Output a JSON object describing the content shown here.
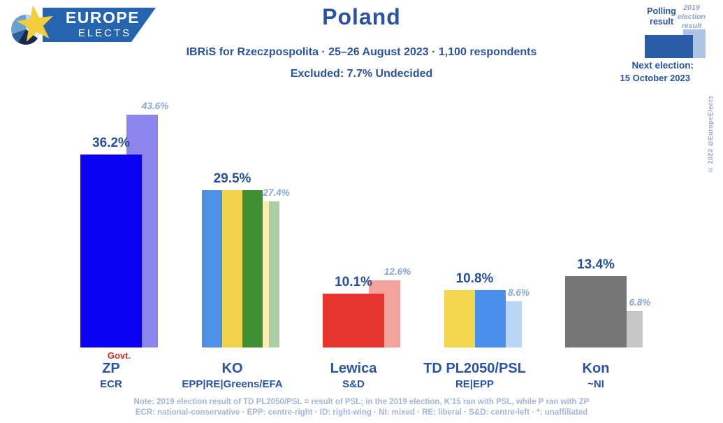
{
  "header": {
    "logo_line1": "EUROPE",
    "logo_line2": "ELECTS",
    "title": "Poland",
    "subtitle": "IBRiS for Rzeczpospolita · 25–26 August 2023 · 1,100 respondents",
    "excluded": "Excluded: 7.7% Undecided"
  },
  "legend": {
    "polling_label": "Polling result",
    "election_label": "2019 election result",
    "polling_color": "#2b5ca8",
    "election_color": "#aec3e6",
    "next_election_label": "Next election:",
    "next_election_date": "15 October 2023",
    "copyright": "© 2023 @EuropeElects"
  },
  "chart_data": {
    "type": "bar",
    "unit": "%",
    "ylim": [
      0,
      45
    ],
    "series": [
      "Polling result",
      "2019 election result"
    ],
    "parties": [
      {
        "name": "ZP",
        "group": "ECR",
        "value": 36.2,
        "value_2019": 43.6,
        "note": "Govt.",
        "colors": [
          "#0b02f2"
        ],
        "colors_2019": [
          "#8b85ec"
        ]
      },
      {
        "name": "KO",
        "group": "EPP|RE|Greens/EFA",
        "value": 29.5,
        "value_2019": 27.4,
        "note": "",
        "colors": [
          "#4d90e6",
          "#f1d44c",
          "#3d8f31"
        ],
        "colors_2019": [
          "#b9d3f4",
          "#f8edaf",
          "#abcea3"
        ]
      },
      {
        "name": "Lewica",
        "group": "S&D",
        "value": 10.1,
        "value_2019": 12.6,
        "note": "",
        "colors": [
          "#e6352c"
        ],
        "colors_2019": [
          "#f2a39e"
        ]
      },
      {
        "name": "TD PL2050/PSL",
        "group": "RE|EPP",
        "value": 10.8,
        "value_2019": 8.6,
        "note": "",
        "colors": [
          "#f5d74d",
          "#4a8fe9"
        ],
        "colors_2019": [
          "#f8edaf",
          "#bcd6f8"
        ]
      },
      {
        "name": "Kon",
        "group": "~NI",
        "value": 13.4,
        "value_2019": 6.8,
        "note": "",
        "colors": [
          "#767676"
        ],
        "colors_2019": [
          "#c6c6c6"
        ]
      }
    ]
  },
  "footer": {
    "note": "Note: 2019 election result of TD PL2050/PSL = result of PSL; in the 2019 election, K'15 ran with PSL, while P ran with ZP",
    "legend_line": "ECR: national-conservative · EPP: centre-right · ID: right-wing · NI: mixed · RE: liberal · S&D: centre-left · *: unaffiliated"
  }
}
